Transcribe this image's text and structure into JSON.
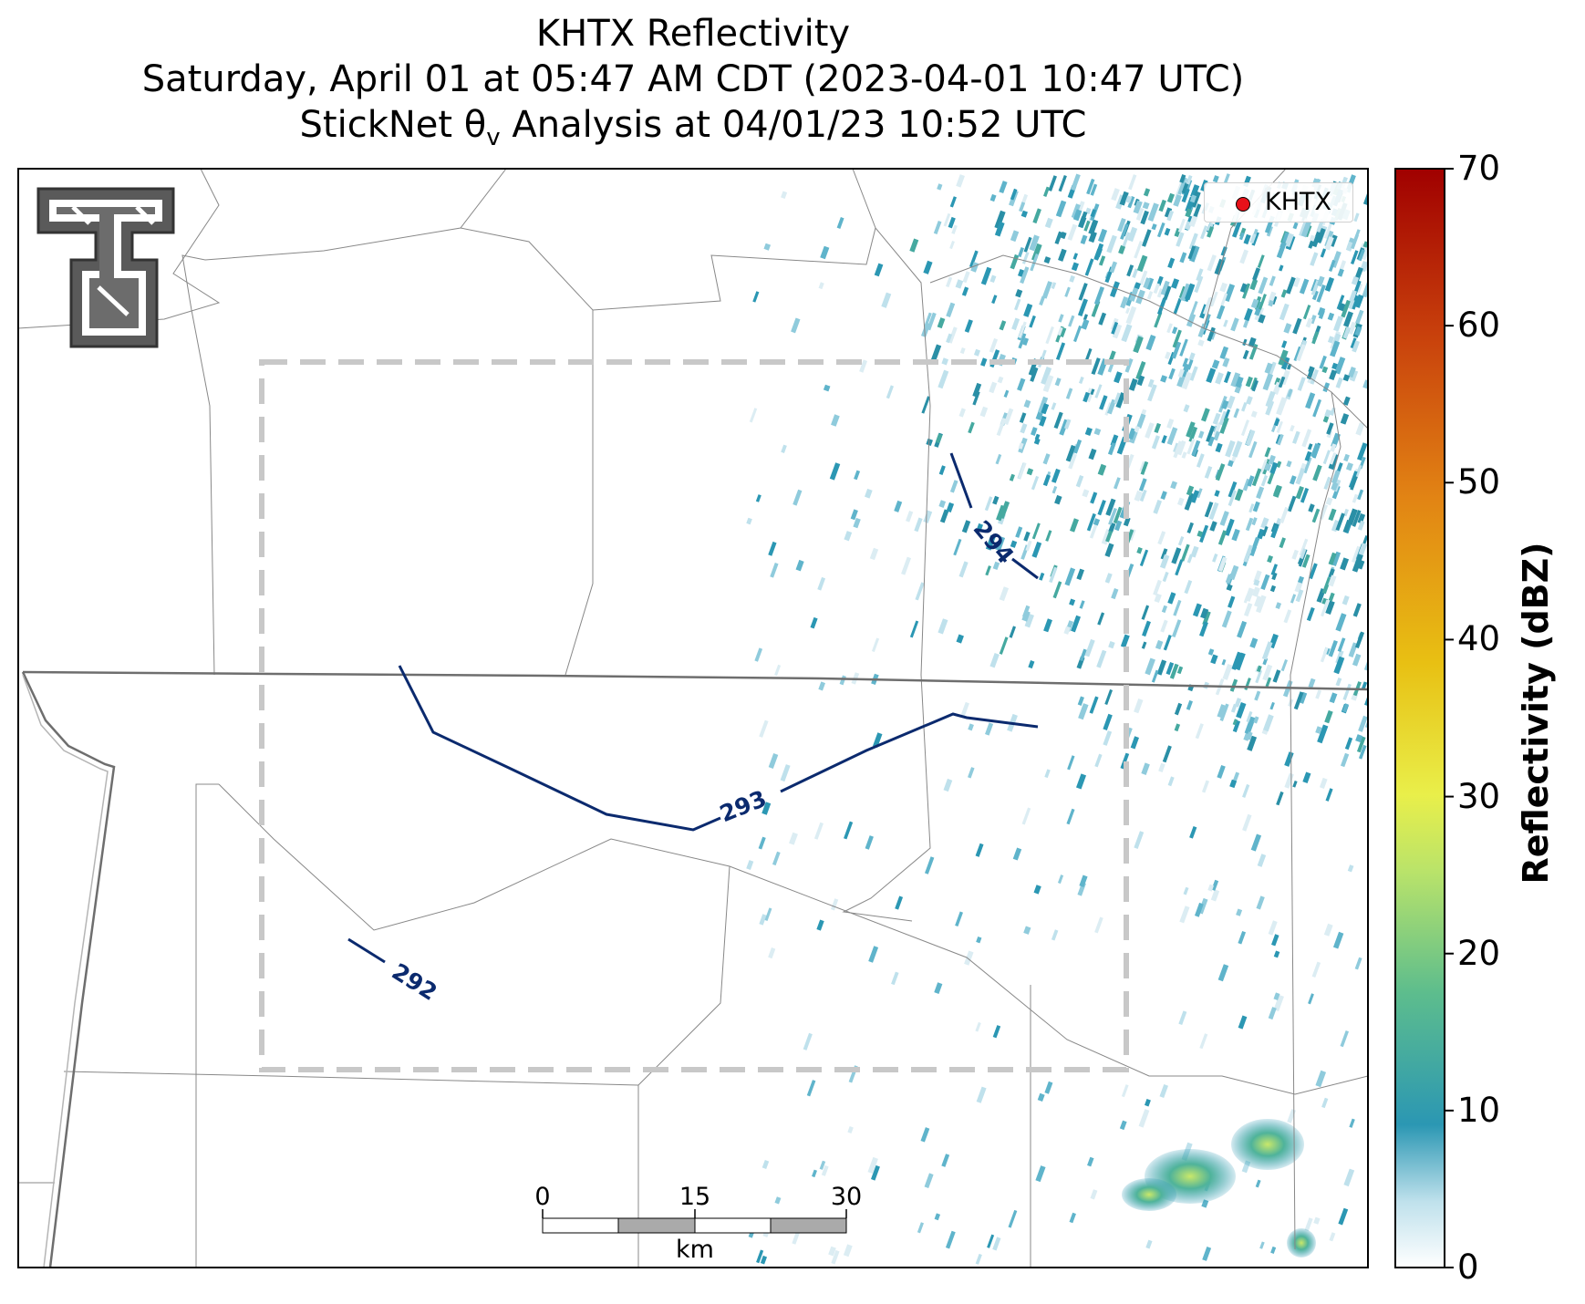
{
  "title": {
    "line1": "KHTX Reflectivity",
    "line2": "Saturday, April 01 at 05:47 AM CDT (2023-04-01 10:47 UTC)",
    "line3": "StickNet θ Analysis at 04/01/23 10:52 UTC",
    "theta_sub": "v"
  },
  "legend": {
    "label": "KHTX",
    "marker_color": "#e8121a"
  },
  "colorbar": {
    "label": "Reflectivity (dBZ)",
    "min": 0,
    "max": 70,
    "ticks": [
      "0",
      "10",
      "20",
      "30",
      "40",
      "50",
      "60",
      "70"
    ],
    "colors": [
      "#ffffff",
      "#2b97b3",
      "#6cc58a",
      "#dff25a",
      "#f0c020",
      "#e27a12",
      "#c03009",
      "#a00000"
    ]
  },
  "contours": [
    {
      "label": "292"
    },
    {
      "label": "293"
    },
    {
      "label": "294"
    }
  ],
  "contour_color": "#0b2a6e",
  "scalebar": {
    "ticks": [
      "0",
      "15",
      "30"
    ],
    "unit": "km"
  },
  "colors": {
    "county_line": "#888888",
    "state_line": "#6e6e6e",
    "analysis_box": "#c8c8c8"
  }
}
